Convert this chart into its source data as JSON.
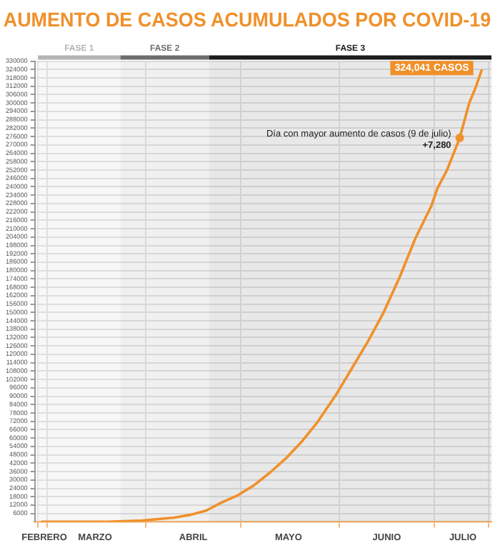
{
  "chart_data": {
    "type": "line",
    "title": "AUMENTO DE CASOS ACUMULADOS POR COVID-19",
    "x": [
      "--02-28",
      "--03-15",
      "--03-20",
      "--03-31",
      "--04-05",
      "--04-10",
      "--04-15",
      "--04-20",
      "--04-25",
      "--04-30",
      "--05-05",
      "--05-10",
      "--05-15",
      "--05-20",
      "--05-25",
      "--05-31",
      "--06-05",
      "--06-10",
      "--06-15",
      "--06-20",
      "--06-25",
      "--06-30",
      "--07-02",
      "--07-05",
      "--07-09",
      "--07-12",
      "--07-14",
      "--07-16"
    ],
    "series": [
      {
        "color": "#f0902a",
        "values": [
          0,
          0,
          0,
          1000,
          2000,
          3000,
          5000,
          8000,
          14000,
          19000,
          26000,
          35000,
          45000,
          57000,
          71000,
          91000,
          110000,
          129000,
          150000,
          175000,
          203000,
          226000,
          239000,
          252000,
          275000,
          300000,
          311000,
          324041
        ]
      }
    ],
    "xlim": [
      "--02-26",
      "--07-19"
    ],
    "xticks": [
      {
        "value": "--02-27",
        "label": null
      },
      {
        "value": "--02-29",
        "label": "FEBRERO"
      },
      {
        "value": "--03-01",
        "label": null
      },
      {
        "value": "--03-16",
        "label": "MARZO"
      },
      {
        "value": "--04-01",
        "label": null
      },
      {
        "value": "--04-16",
        "label": "ABRIL"
      },
      {
        "value": "--05-01",
        "label": null
      },
      {
        "value": "--05-16",
        "label": "MAYO"
      },
      {
        "value": "--06-01",
        "label": null
      },
      {
        "value": "--06-16",
        "label": "JUNIO"
      },
      {
        "value": "--07-01",
        "label": null
      },
      {
        "value": "--07-10",
        "label": "JULIO"
      },
      {
        "value": "--07-18",
        "label": null
      }
    ],
    "ylim": [
      0,
      330000
    ],
    "yticks": [
      6000,
      12000,
      18000,
      24000,
      30000,
      36000,
      42000,
      48000,
      54000,
      60000,
      66000,
      72000,
      78000,
      84000,
      90000,
      96000,
      102000,
      108000,
      114000,
      120000,
      126000,
      132000,
      138000,
      144000,
      150000,
      156000,
      162000,
      168000,
      174000,
      180000,
      186000,
      192000,
      198000,
      204000,
      210000,
      216000,
      222000,
      228000,
      234000,
      240000,
      246000,
      252000,
      258000,
      264000,
      270000,
      276000,
      282000,
      288000,
      294000,
      300000,
      306000,
      312000,
      318000,
      324000,
      330000
    ],
    "grid": true,
    "legend": false,
    "bands": [
      {
        "axis": "x",
        "from": "--02-27",
        "to": "--03-24",
        "label": "FASE 1",
        "color": "#b4b4b4"
      },
      {
        "axis": "x",
        "from": "--03-24",
        "to": "--04-21",
        "label": "FASE 2",
        "color": "#6e6e6e"
      },
      {
        "axis": "x",
        "from": "--04-21",
        "to": "--07-19",
        "label": "FASE 3",
        "color": "#1c1c1c"
      }
    ],
    "annotations": [
      {
        "text": "324,041 CASOS",
        "x": "--07-16",
        "y": 324041
      },
      {
        "text": "Día con mayor aumento de casos (9 de julio)",
        "x": "--07-09",
        "y": 275000
      },
      {
        "text": "+7,280",
        "x": "--07-09",
        "y": 275000
      }
    ]
  }
}
